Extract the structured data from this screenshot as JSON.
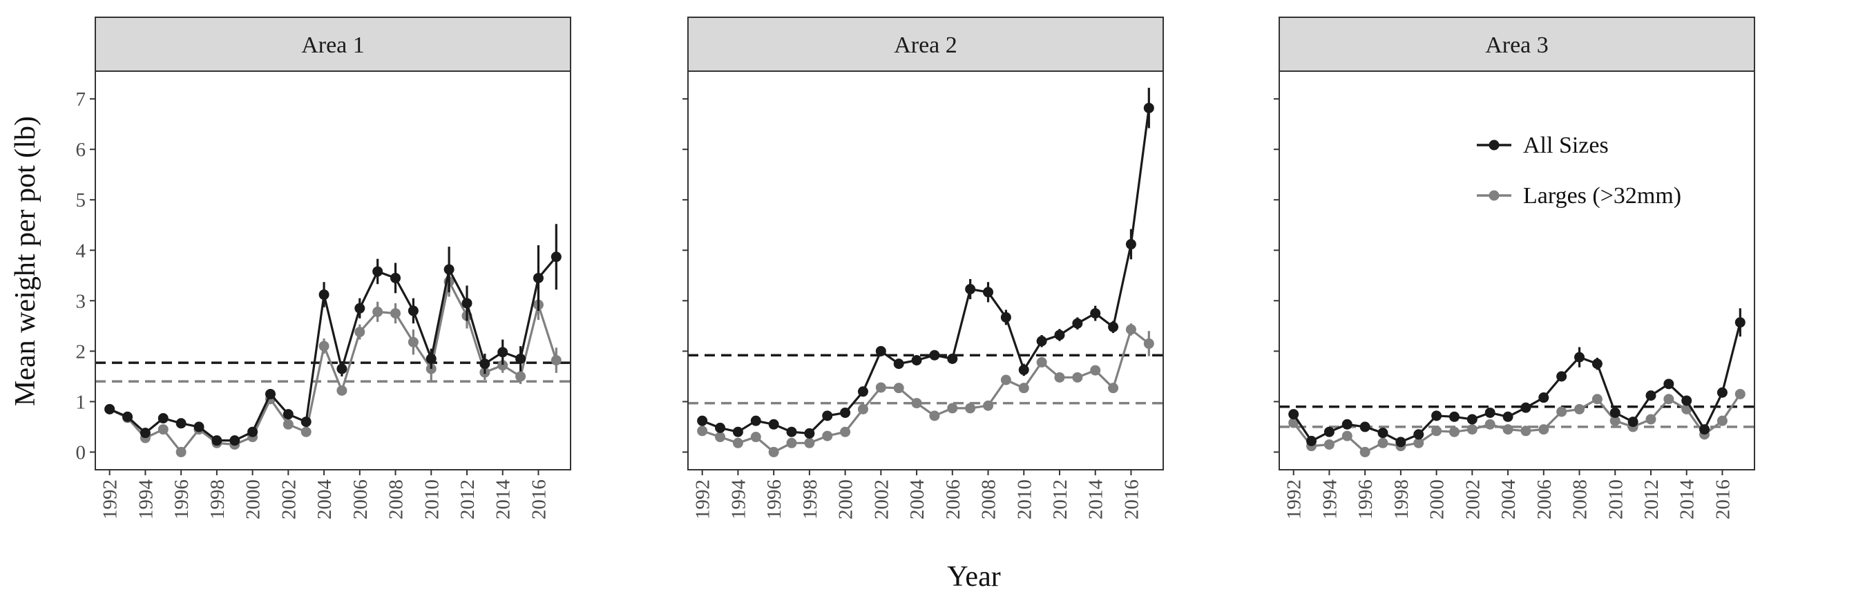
{
  "chart_data": {
    "type": "line",
    "xlabel": "Year",
    "ylabel": "Mean weight per pot (lb)",
    "ylim": [
      -0.35,
      7.55
    ],
    "yticks": [
      0,
      1,
      2,
      3,
      4,
      5,
      6,
      7
    ],
    "xlim": [
      1991.2,
      2017.8
    ],
    "xticks": [
      1992,
      1994,
      1996,
      1998,
      2000,
      2002,
      2004,
      2006,
      2008,
      2010,
      2012,
      2014,
      2016
    ],
    "legend": {
      "position": "top-right of Area 3 panel",
      "entries": [
        "All Sizes",
        "Larges (>32mm)"
      ]
    },
    "colors": {
      "all_sizes": "#1a1a1a",
      "larges": "#808080"
    },
    "panels": [
      {
        "label": "Area 1",
        "series": [
          {
            "name": "All Sizes",
            "color": "#1a1a1a",
            "x": [
              1992,
              1993,
              1994,
              1995,
              1996,
              1997,
              1998,
              1999,
              2000,
              2001,
              2002,
              2003,
              2004,
              2005,
              2006,
              2007,
              2008,
              2009,
              2010,
              2011,
              2012,
              2013,
              2014,
              2015,
              2016,
              2017
            ],
            "y": [
              0.85,
              0.7,
              0.38,
              0.67,
              0.57,
              0.5,
              0.23,
              0.23,
              0.4,
              1.15,
              0.75,
              0.6,
              3.12,
              1.65,
              2.85,
              3.58,
              3.45,
              2.8,
              1.85,
              3.62,
              2.95,
              1.75,
              1.98,
              1.85,
              3.45,
              3.87
            ],
            "err": [
              0.06,
              0.06,
              0.05,
              0.06,
              0.06,
              0.05,
              0.04,
              0.04,
              0.05,
              0.1,
              0.08,
              0.07,
              0.25,
              0.15,
              0.2,
              0.25,
              0.3,
              0.25,
              0.2,
              0.45,
              0.35,
              0.2,
              0.25,
              0.25,
              0.65,
              0.65
            ]
          },
          {
            "name": "Larges (>32mm)",
            "color": "#808080",
            "x": [
              1992,
              1993,
              1994,
              1995,
              1996,
              1997,
              1998,
              1999,
              2000,
              2001,
              2002,
              2003,
              2004,
              2005,
              2006,
              2007,
              2008,
              2009,
              2010,
              2011,
              2012,
              2013,
              2014,
              2015,
              2016,
              2017
            ],
            "y": [
              0.85,
              0.68,
              0.28,
              0.45,
              0.0,
              0.45,
              0.18,
              0.15,
              0.3,
              1.05,
              0.55,
              0.4,
              2.1,
              1.22,
              2.38,
              2.78,
              2.75,
              2.18,
              1.65,
              3.38,
              2.7,
              1.58,
              1.72,
              1.5,
              2.92,
              1.82
            ],
            "err": [
              0.05,
              0.05,
              0.04,
              0.05,
              0.03,
              0.05,
              0.03,
              0.03,
              0.04,
              0.08,
              0.06,
              0.05,
              0.15,
              0.1,
              0.15,
              0.2,
              0.2,
              0.25,
              0.25,
              0.3,
              0.25,
              0.15,
              0.15,
              0.15,
              0.3,
              0.25
            ]
          }
        ],
        "hlines": [
          {
            "series": "All Sizes",
            "y": 1.77
          },
          {
            "series": "Larges (>32mm)",
            "y": 1.4
          }
        ]
      },
      {
        "label": "Area 2",
        "series": [
          {
            "name": "All Sizes",
            "color": "#1a1a1a",
            "x": [
              1992,
              1993,
              1994,
              1995,
              1996,
              1997,
              1998,
              1999,
              2000,
              2001,
              2002,
              2003,
              2004,
              2005,
              2006,
              2007,
              2008,
              2009,
              2010,
              2011,
              2012,
              2013,
              2014,
              2015,
              2016,
              2017
            ],
            "y": [
              0.62,
              0.48,
              0.4,
              0.62,
              0.55,
              0.4,
              0.37,
              0.72,
              0.78,
              1.2,
              2.0,
              1.75,
              1.82,
              1.92,
              1.85,
              3.23,
              3.17,
              2.67,
              1.63,
              2.2,
              2.32,
              2.55,
              2.75,
              2.48,
              4.12,
              6.82
            ],
            "err": [
              0.05,
              0.05,
              0.05,
              0.05,
              0.05,
              0.04,
              0.04,
              0.06,
              0.06,
              0.08,
              0.1,
              0.1,
              0.1,
              0.1,
              0.1,
              0.2,
              0.2,
              0.15,
              0.12,
              0.12,
              0.12,
              0.12,
              0.15,
              0.12,
              0.3,
              0.4
            ]
          },
          {
            "name": "Larges (>32mm)",
            "color": "#808080",
            "x": [
              1992,
              1993,
              1994,
              1995,
              1996,
              1997,
              1998,
              1999,
              2000,
              2001,
              2002,
              2003,
              2004,
              2005,
              2006,
              2007,
              2008,
              2009,
              2010,
              2011,
              2012,
              2013,
              2014,
              2015,
              2016,
              2017
            ],
            "y": [
              0.42,
              0.3,
              0.18,
              0.3,
              0.0,
              0.18,
              0.18,
              0.32,
              0.4,
              0.85,
              1.28,
              1.27,
              0.97,
              0.72,
              0.87,
              0.87,
              0.92,
              1.43,
              1.27,
              1.78,
              1.48,
              1.48,
              1.62,
              1.27,
              2.43,
              2.15
            ],
            "err": [
              0.04,
              0.04,
              0.03,
              0.04,
              0.02,
              0.03,
              0.03,
              0.04,
              0.04,
              0.06,
              0.07,
              0.07,
              0.06,
              0.05,
              0.06,
              0.06,
              0.06,
              0.08,
              0.07,
              0.1,
              0.08,
              0.08,
              0.08,
              0.07,
              0.12,
              0.25
            ]
          }
        ],
        "hlines": [
          {
            "series": "All Sizes",
            "y": 1.92
          },
          {
            "series": "Larges (>32mm)",
            "y": 0.97
          }
        ]
      },
      {
        "label": "Area 3",
        "series": [
          {
            "name": "All Sizes",
            "color": "#1a1a1a",
            "x": [
              1992,
              1993,
              1994,
              1995,
              1996,
              1997,
              1998,
              1999,
              2000,
              2001,
              2002,
              2003,
              2004,
              2005,
              2006,
              2007,
              2008,
              2009,
              2010,
              2011,
              2012,
              2013,
              2014,
              2015,
              2016,
              2017
            ],
            "y": [
              0.75,
              0.22,
              0.4,
              0.55,
              0.5,
              0.38,
              0.2,
              0.35,
              0.72,
              0.7,
              0.65,
              0.78,
              0.7,
              0.88,
              1.08,
              1.5,
              1.88,
              1.75,
              0.78,
              0.6,
              1.12,
              1.35,
              1.02,
              0.45,
              1.18,
              2.57
            ],
            "err": [
              0.05,
              0.04,
              0.04,
              0.05,
              0.05,
              0.04,
              0.03,
              0.04,
              0.05,
              0.05,
              0.05,
              0.05,
              0.05,
              0.06,
              0.07,
              0.1,
              0.2,
              0.12,
              0.06,
              0.05,
              0.07,
              0.08,
              0.07,
              0.05,
              0.1,
              0.28
            ]
          },
          {
            "name": "Larges (>32mm)",
            "color": "#808080",
            "x": [
              1992,
              1993,
              1994,
              1995,
              1996,
              1997,
              1998,
              1999,
              2000,
              2001,
              2002,
              2003,
              2004,
              2005,
              2006,
              2007,
              2008,
              2009,
              2010,
              2011,
              2012,
              2013,
              2014,
              2015,
              2016,
              2017
            ],
            "y": [
              0.58,
              0.12,
              0.15,
              0.32,
              0.0,
              0.18,
              0.12,
              0.18,
              0.42,
              0.4,
              0.45,
              0.55,
              0.45,
              0.42,
              0.45,
              0.8,
              0.85,
              1.05,
              0.62,
              0.5,
              0.65,
              1.05,
              0.85,
              0.35,
              0.62,
              1.15
            ],
            "err": [
              0.04,
              0.03,
              0.03,
              0.04,
              0.02,
              0.03,
              0.03,
              0.03,
              0.04,
              0.04,
              0.04,
              0.04,
              0.04,
              0.04,
              0.04,
              0.06,
              0.07,
              0.07,
              0.05,
              0.04,
              0.05,
              0.07,
              0.06,
              0.04,
              0.05,
              0.1
            ]
          }
        ],
        "hlines": [
          {
            "series": "All Sizes",
            "y": 0.9
          },
          {
            "series": "Larges (>32mm)",
            "y": 0.5
          }
        ]
      }
    ]
  }
}
